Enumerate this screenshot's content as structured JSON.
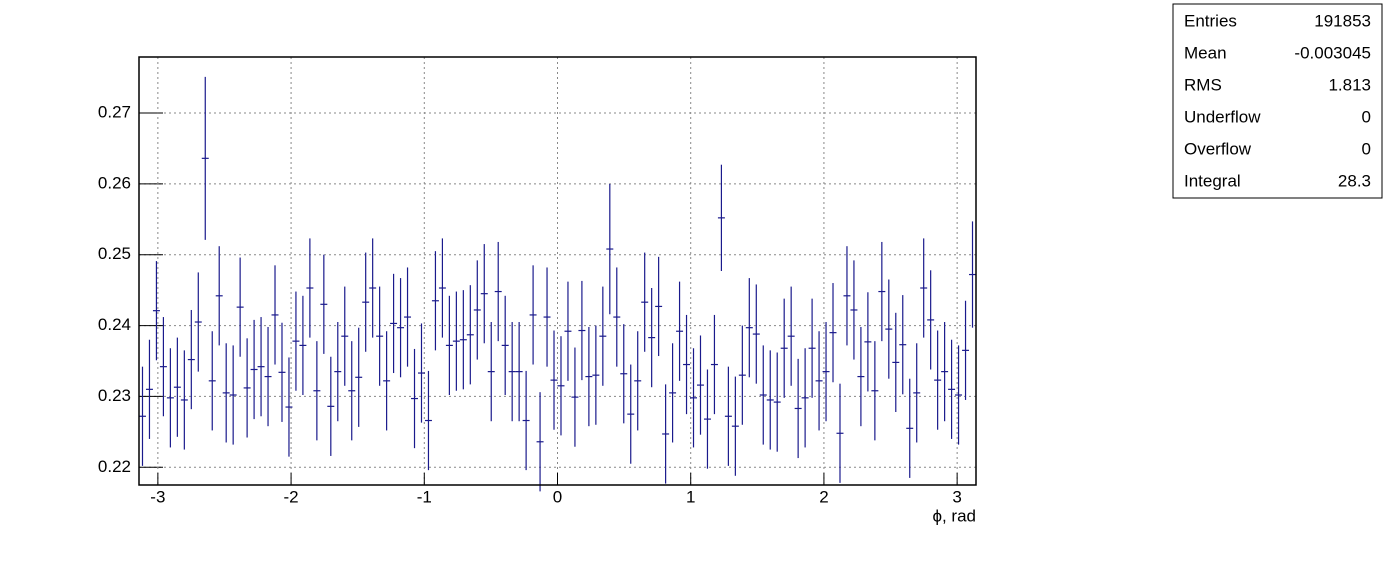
{
  "chart_data": {
    "type": "histogram-errors",
    "x_label": "ϕ, rad",
    "color": "#1a1a8c",
    "xlim": [
      -3.1416,
      3.1416
    ],
    "ylim": [
      0.2175,
      0.2779
    ],
    "xticks": [
      -3,
      -2,
      -1,
      0,
      1,
      2,
      3
    ],
    "yticks": [
      0.22,
      0.23,
      0.24,
      0.25,
      0.26,
      0.27
    ],
    "grid": true,
    "bins": [
      -3.1416,
      -3.0892,
      -3.0369,
      -2.9845,
      -2.9322,
      -2.8798,
      -2.8274,
      -2.7751,
      -2.7227,
      -2.6704,
      -2.618,
      -2.5656,
      -2.5133,
      -2.4609,
      -2.4086,
      -2.3562,
      -2.3038,
      -2.2515,
      -2.1991,
      -2.1468,
      -2.0944,
      -2.042,
      -1.9897,
      -1.9373,
      -1.885,
      -1.8326,
      -1.7802,
      -1.7279,
      -1.6755,
      -1.6232,
      -1.5708,
      -1.5184,
      -1.4661,
      -1.4137,
      -1.3614,
      -1.309,
      -1.2566,
      -1.2043,
      -1.1519,
      -1.0996,
      -1.0472,
      -0.9948,
      -0.9425,
      -0.8901,
      -0.8378,
      -0.7854,
      -0.733,
      -0.6807,
      -0.6283,
      -0.576,
      -0.5236,
      -0.4712,
      -0.4189,
      -0.3665,
      -0.3142,
      -0.2618,
      -0.2094,
      -0.1571,
      -0.1047,
      -0.0524,
      0,
      0.0524,
      0.1047,
      0.1571,
      0.2094,
      0.2618,
      0.3142,
      0.3665,
      0.4189,
      0.4712,
      0.5236,
      0.576,
      0.6283,
      0.6807,
      0.733,
      0.7854,
      0.8378,
      0.8901,
      0.9425,
      0.9948,
      1.0472,
      1.0996,
      1.1519,
      1.2043,
      1.2566,
      1.309,
      1.3614,
      1.4137,
      1.4661,
      1.5184,
      1.5708,
      1.6232,
      1.6755,
      1.7279,
      1.7802,
      1.8326,
      1.885,
      1.9373,
      1.9897,
      2.042,
      2.0944,
      2.1468,
      2.1991,
      2.2515,
      2.3038,
      2.3562,
      2.4086,
      2.4609,
      2.5133,
      2.5656,
      2.618,
      2.6704,
      2.7227,
      2.7751,
      2.8274,
      2.8798,
      2.9322,
      2.9845,
      3.0369,
      3.0892,
      3.1416
    ],
    "values": [
      0.2272,
      0.231,
      0.2421,
      0.2342,
      0.2298,
      0.2313,
      0.2295,
      0.2352,
      0.2405,
      0.2636,
      0.2322,
      0.2442,
      0.2305,
      0.2302,
      0.2426,
      0.2312,
      0.2338,
      0.2342,
      0.2328,
      0.2415,
      0.2334,
      0.2285,
      0.2378,
      0.2372,
      0.2453,
      0.2308,
      0.243,
      0.2286,
      0.2335,
      0.2385,
      0.2308,
      0.2327,
      0.2433,
      0.2453,
      0.2385,
      0.2322,
      0.2403,
      0.2397,
      0.2412,
      0.2297,
      0.2333,
      0.2266,
      0.2435,
      0.2453,
      0.2372,
      0.2378,
      0.238,
      0.2387,
      0.2422,
      0.2445,
      0.2335,
      0.2448,
      0.2372,
      0.2335,
      0.2335,
      0.2266,
      0.2415,
      0.2236,
      0.2412,
      0.2323,
      0.2315,
      0.2392,
      0.2299,
      0.2393,
      0.2328,
      0.233,
      0.2385,
      0.2508,
      0.2412,
      0.2332,
      0.2275,
      0.2322,
      0.2433,
      0.2383,
      0.2427,
      0.2247,
      0.2305,
      0.2392,
      0.2345,
      0.2298,
      0.2316,
      0.2268,
      0.2345,
      0.2552,
      0.2272,
      0.2258,
      0.233,
      0.2397,
      0.2388,
      0.2302,
      0.2295,
      0.2292,
      0.2368,
      0.2385,
      0.2283,
      0.2298,
      0.2368,
      0.2322,
      0.2335,
      0.239,
      0.2248,
      0.2442,
      0.2422,
      0.2328,
      0.2377,
      0.2308,
      0.2448,
      0.2395,
      0.2348,
      0.2373,
      0.2255,
      0.2305,
      0.2453,
      0.2408,
      0.2323,
      0.2335,
      0.231,
      0.2302,
      0.2365,
      0.2472
    ],
    "errors": [
      0.007,
      0.007,
      0.007,
      0.007,
      0.007,
      0.007,
      0.007,
      0.007,
      0.007,
      0.0115,
      0.007,
      0.007,
      0.007,
      0.007,
      0.007,
      0.007,
      0.007,
      0.007,
      0.007,
      0.007,
      0.007,
      0.007,
      0.007,
      0.007,
      0.007,
      0.007,
      0.007,
      0.007,
      0.007,
      0.007,
      0.007,
      0.007,
      0.007,
      0.007,
      0.007,
      0.007,
      0.007,
      0.007,
      0.007,
      0.007,
      0.007,
      0.007,
      0.007,
      0.007,
      0.007,
      0.007,
      0.007,
      0.007,
      0.007,
      0.007,
      0.007,
      0.007,
      0.007,
      0.007,
      0.007,
      0.007,
      0.007,
      0.007,
      0.007,
      0.007,
      0.007,
      0.007,
      0.007,
      0.007,
      0.007,
      0.007,
      0.007,
      0.0092,
      0.007,
      0.007,
      0.007,
      0.007,
      0.007,
      0.007,
      0.007,
      0.007,
      0.007,
      0.007,
      0.007,
      0.007,
      0.007,
      0.007,
      0.007,
      0.0075,
      0.007,
      0.007,
      0.007,
      0.007,
      0.007,
      0.007,
      0.007,
      0.007,
      0.007,
      0.007,
      0.007,
      0.007,
      0.007,
      0.007,
      0.007,
      0.007,
      0.007,
      0.007,
      0.007,
      0.007,
      0.007,
      0.007,
      0.007,
      0.007,
      0.007,
      0.007,
      0.007,
      0.007,
      0.007,
      0.007,
      0.007,
      0.007,
      0.007,
      0.007,
      0.007,
      0.0075
    ],
    "stats": [
      {
        "label": "Entries",
        "value": "191853"
      },
      {
        "label": "Mean",
        "value": "-0.003045"
      },
      {
        "label": "RMS",
        "value": "1.813"
      },
      {
        "label": "Underflow",
        "value": "0"
      },
      {
        "label": "Overflow",
        "value": "0"
      },
      {
        "label": "Integral",
        "value": "28.3"
      }
    ]
  }
}
